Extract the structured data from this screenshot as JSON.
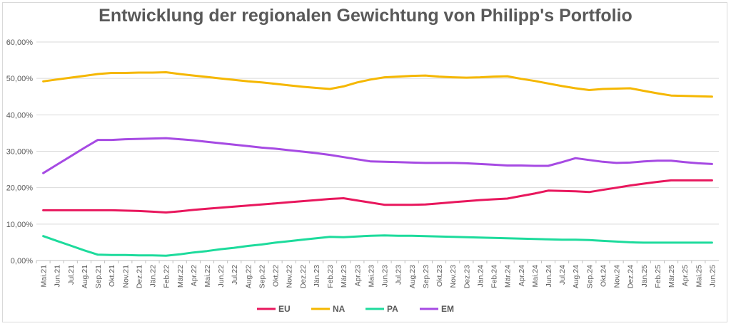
{
  "chart_data": {
    "type": "line",
    "title": "Entwicklung der regionalen Gewichtung von Philipp's Portfolio",
    "xlabel": "",
    "ylabel": "",
    "ylim": [
      0,
      60
    ],
    "yticks": [
      "0,00%",
      "10,00%",
      "20,00%",
      "30,00%",
      "40,00%",
      "50,00%",
      "60,00%"
    ],
    "categories": [
      "Mai.21",
      "Jun.21",
      "Jul.21",
      "Aug.21",
      "Sep.21",
      "Okt.21",
      "Nov.21",
      "Dez.21",
      "Jän.22",
      "Feb.22",
      "Mär.22",
      "Apr.22",
      "Mai.22",
      "Jun.22",
      "Jul.22",
      "Aug.22",
      "Sep.22",
      "Okt.22",
      "Nov.22",
      "Dez.22",
      "Jän.23",
      "Feb.23",
      "Mär.23",
      "Apr.23",
      "Mai.23",
      "Jun.23",
      "Jul.23",
      "Aug.23",
      "Sep.23",
      "Okt.23",
      "Nov.23",
      "Dez.23",
      "Jän.24",
      "Feb.24",
      "Mär.24",
      "Apr.24",
      "Mai.24",
      "Jun.24",
      "Jul.24",
      "Aug.24",
      "Sep.24",
      "Okt.24",
      "Nov.24",
      "Dez.24",
      "Jän.25",
      "Feb.25",
      "Mär.25",
      "Apr.25",
      "Mai.25",
      "Jun.25"
    ],
    "grid": true,
    "legend_position": "bottom",
    "series": [
      {
        "name": "EU",
        "color": "#e8175d",
        "values": [
          13.8,
          13.8,
          13.8,
          13.8,
          13.8,
          13.8,
          13.7,
          13.6,
          13.4,
          13.2,
          13.5,
          13.9,
          14.2,
          14.5,
          14.8,
          15.1,
          15.4,
          15.7,
          16.0,
          16.3,
          16.6,
          16.9,
          17.1,
          16.5,
          15.9,
          15.3,
          15.3,
          15.3,
          15.4,
          15.7,
          16.0,
          16.3,
          16.6,
          16.8,
          17.0,
          17.7,
          18.4,
          19.2,
          19.1,
          19.0,
          18.8,
          19.4,
          20.0,
          20.6,
          21.1,
          21.6,
          22.0,
          22.0,
          22.0,
          22.0
        ]
      },
      {
        "name": "NA",
        "color": "#f5b700",
        "values": [
          49.2,
          49.7,
          50.2,
          50.7,
          51.2,
          51.5,
          51.5,
          51.6,
          51.6,
          51.7,
          51.2,
          50.8,
          50.4,
          50.0,
          49.6,
          49.2,
          48.9,
          48.5,
          48.1,
          47.7,
          47.4,
          47.1,
          47.8,
          48.9,
          49.7,
          50.3,
          50.5,
          50.7,
          50.8,
          50.5,
          50.3,
          50.2,
          50.3,
          50.5,
          50.6,
          49.9,
          49.3,
          48.6,
          47.9,
          47.3,
          46.8,
          47.1,
          47.2,
          47.3,
          46.6,
          45.9,
          45.3,
          45.2,
          45.1,
          45.0
        ]
      },
      {
        "name": "PA",
        "color": "#1ddb9c",
        "values": [
          6.7,
          5.4,
          4.1,
          2.8,
          1.6,
          1.5,
          1.5,
          1.4,
          1.4,
          1.3,
          1.7,
          2.2,
          2.6,
          3.1,
          3.5,
          4.0,
          4.4,
          4.9,
          5.3,
          5.7,
          6.1,
          6.5,
          6.4,
          6.6,
          6.8,
          6.9,
          6.8,
          6.8,
          6.7,
          6.6,
          6.5,
          6.4,
          6.3,
          6.2,
          6.1,
          6.0,
          5.9,
          5.8,
          5.7,
          5.7,
          5.6,
          5.4,
          5.2,
          5.0,
          4.9,
          4.9,
          4.9,
          4.9,
          4.9,
          4.9
        ]
      },
      {
        "name": "EM",
        "color": "#a64ae3",
        "values": [
          24.0,
          26.3,
          28.6,
          30.9,
          33.1,
          33.1,
          33.3,
          33.4,
          33.5,
          33.6,
          33.3,
          33.0,
          32.6,
          32.2,
          31.8,
          31.4,
          31.0,
          30.7,
          30.3,
          29.9,
          29.5,
          29.0,
          28.4,
          27.8,
          27.2,
          27.1,
          27.0,
          26.9,
          26.8,
          26.8,
          26.8,
          26.7,
          26.5,
          26.3,
          26.1,
          26.1,
          26.0,
          26.0,
          27.0,
          28.1,
          27.6,
          27.1,
          26.8,
          26.9,
          27.2,
          27.4,
          27.4,
          27.0,
          26.7,
          26.5
        ]
      }
    ]
  }
}
